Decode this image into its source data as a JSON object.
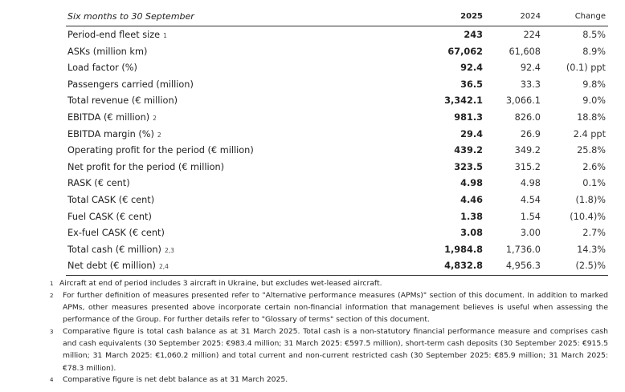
{
  "table": {
    "header": [
      "Six months to 30 September",
      "2025",
      "2024",
      "Change"
    ],
    "rows": [
      {
        "label": "Period-end fleet size",
        "note": "1",
        "y2025": "243",
        "y2024": "224",
        "change": "8.5%"
      },
      {
        "label": "ASKs (million km)",
        "y2025": "67,062",
        "y2024": "61,608",
        "change": "8.9%"
      },
      {
        "label": "Load factor (%)",
        "y2025": "92.4",
        "y2024": "92.4",
        "change": "(0.1) ppt"
      },
      {
        "label": "Passengers carried (million)",
        "y2025": "36.5",
        "y2024": "33.3",
        "change": "9.8%"
      },
      {
        "label": "Total revenue (€ million)",
        "y2025": "3,342.1",
        "y2024": "3,066.1",
        "change": "9.0%"
      },
      {
        "label": "EBITDA (€ million)",
        "note": "2",
        "y2025": "981.3",
        "y2024": "826.0",
        "change": "18.8%"
      },
      {
        "label": "EBITDA margin (%)",
        "note": "2",
        "y2025": "29.4",
        "y2024": "26.9",
        "change": "2.4 ppt"
      },
      {
        "label": "Operating profit for the period (€ million)",
        "y2025": "439.2",
        "y2024": "349.2",
        "change": "25.8%"
      },
      {
        "label": "Net profit for the period (€ million)",
        "y2025": "323.5",
        "y2024": "315.2",
        "change": "2.6%"
      },
      {
        "label": "RASK (€ cent)",
        "y2025": "4.98",
        "y2024": "4.98",
        "change": "0.1%"
      },
      {
        "label": "Total CASK (€ cent)",
        "y2025": "4.46",
        "y2024": "4.54",
        "change": "(1.8)%"
      },
      {
        "label": "Fuel CASK (€ cent)",
        "y2025": "1.38",
        "y2024": "1.54",
        "change": "(10.4)%"
      },
      {
        "label": "Ex-fuel CASK (€ cent)",
        "y2025": "3.08",
        "y2024": "3.00",
        "change": "2.7%"
      },
      {
        "label": "Total cash (€ million)",
        "note": "2,3",
        "y2025": "1,984.8",
        "y2024": "1,736.0",
        "change": "14.3%"
      },
      {
        "label": "Net debt (€ million)",
        "note": "2,4",
        "y2025": "4,832.8",
        "y2024": "4,956.3",
        "change": "(2.5)%"
      }
    ]
  },
  "footnotes": [
    {
      "num": "1",
      "text": "Aircraft at end of period includes 3 aircraft in Ukraine, but excludes wet-leased aircraft."
    },
    {
      "num": "2",
      "text": "For further definition of measures presented refer to \"Alternative performance measures (APMs)\" section of this document. In addition to marked APMs, other measures presented above incorporate certain non-financial information that management believes is useful when assessing the performance of the Group. For further details refer to \"Glossary of terms\" section of this document."
    },
    {
      "num": "3",
      "text": "Comparative figure is total cash balance as at 31 March 2025. Total cash is a non-statutory financial performance measure and comprises cash and cash equivalents (30 September 2025: €983.4 million; 31 March 2025: €597.5 million), short-term cash deposits (30 September 2025: €915.5 million; 31 March 2025: €1,060.2 million) and total current and non-current restricted cash (30 September 2025: €85.9 million; 31 March 2025: €78.3 million)."
    },
    {
      "num": "4",
      "text": "Comparative figure is net debt balance as at 31 March 2025."
    }
  ]
}
